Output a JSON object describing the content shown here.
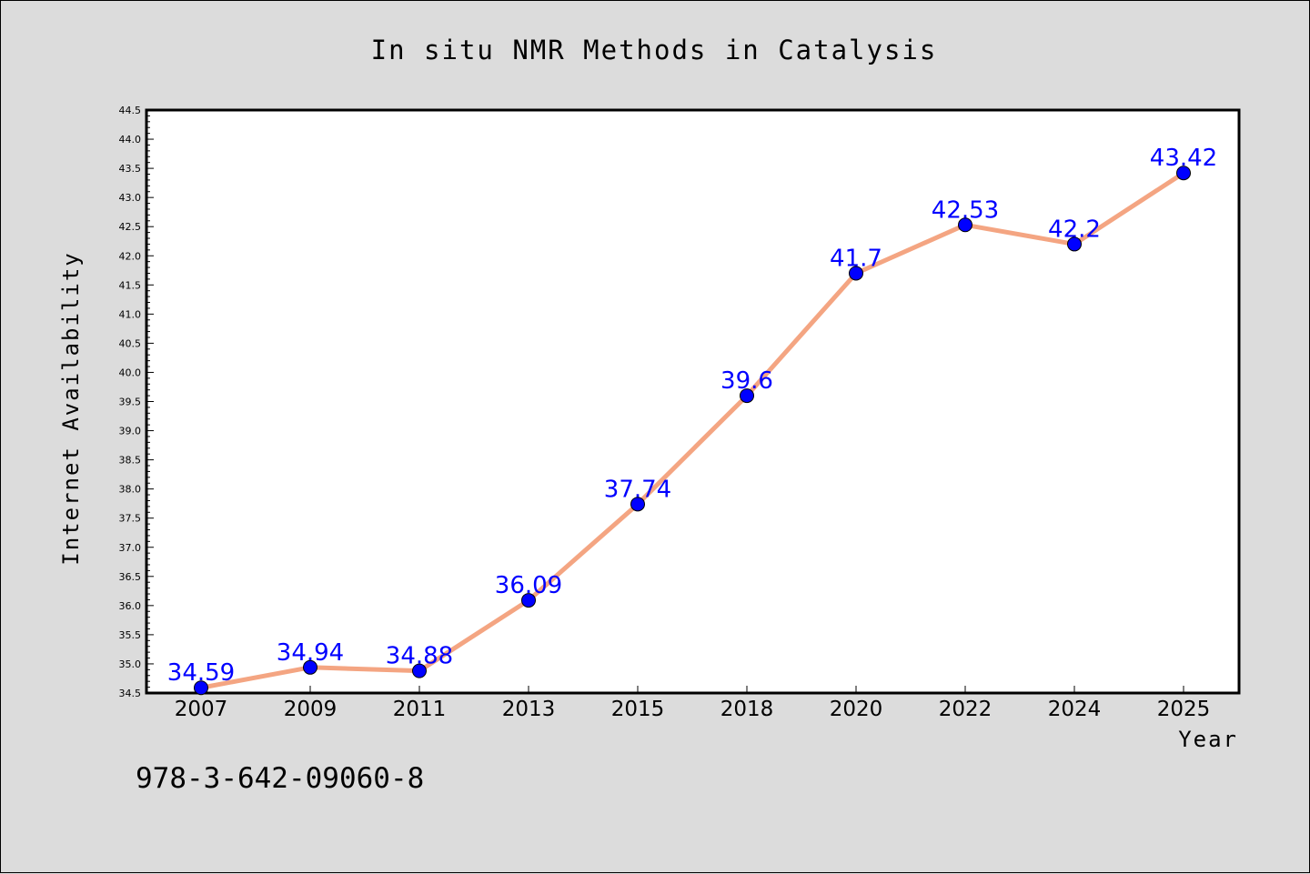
{
  "chart_data": {
    "type": "line",
    "title": "In situ NMR Methods in Catalysis",
    "xlabel": "Year",
    "ylabel": "Internet Availability",
    "categories": [
      "2007",
      "2009",
      "2011",
      "2013",
      "2015",
      "2018",
      "2020",
      "2022",
      "2024",
      "2025"
    ],
    "values": [
      34.59,
      34.94,
      34.88,
      36.09,
      37.74,
      39.6,
      41.7,
      42.53,
      42.2,
      43.42
    ],
    "data_labels": [
      "34.59",
      "34.94",
      "34.88",
      "36.09",
      "37.74",
      "39.6",
      "41.7",
      "42.53",
      "42.2",
      "43.42"
    ],
    "ylim": [
      34.5,
      44.5
    ],
    "y_ticks": [
      "34.5",
      "35.0",
      "35.5",
      "36.0",
      "36.5",
      "37.0",
      "37.5",
      "38.0",
      "38.5",
      "39.0",
      "39.5",
      "40.0",
      "40.5",
      "41.0",
      "41.5",
      "42.0",
      "42.5",
      "43.0",
      "43.5",
      "44.0",
      "44.5"
    ],
    "grid": false,
    "line_color": "#f4a582",
    "marker_color": "#0000ff",
    "label_color": "#0000ff",
    "annotation": "978-3-642-09060-8"
  }
}
